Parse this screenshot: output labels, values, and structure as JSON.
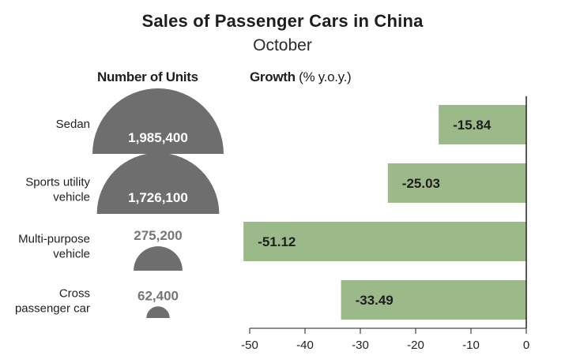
{
  "title": "Sales of Passenger Cars in China",
  "subtitle": "October",
  "units_header": "Number of Units",
  "growth_header_bold": "Growth",
  "growth_header_light": "(% y.o.y.)",
  "colors": {
    "semicircle": "#6e6e6e",
    "bar": "#9cb98a",
    "axis": "#222222"
  },
  "chart_data": [
    {
      "type": "semicircle-area",
      "title": "Number of Units",
      "categories": [
        "Sedan",
        "Sports utility vehicle",
        "Multi-purpose vehicle",
        "Cross passenger car"
      ],
      "values": [
        1985400,
        1726100,
        275200,
        62400
      ],
      "value_labels": [
        "1,985,400",
        "1,726,100",
        "275,200",
        "62,400"
      ]
    },
    {
      "type": "bar",
      "orientation": "horizontal",
      "title": "Growth (% y.o.y.)",
      "categories": [
        "Sedan",
        "Sports utility vehicle",
        "Multi-purpose vehicle",
        "Cross passenger car"
      ],
      "values": [
        -15.84,
        -25.03,
        -51.12,
        -33.49
      ],
      "value_labels": [
        "-15.84",
        "-25.03",
        "-51.12",
        "-33.49"
      ],
      "xlim": [
        -50,
        0
      ],
      "xticks": [
        -50,
        -40,
        -30,
        -20,
        -10,
        0
      ],
      "tick_labels": [
        "-50",
        "-40",
        "-30",
        "-20",
        "-10",
        "0"
      ],
      "grid": false
    }
  ],
  "category_labels": [
    [
      "Sedan"
    ],
    [
      "Sports utility",
      "vehicle"
    ],
    [
      "Multi-purpose",
      "vehicle"
    ],
    [
      "Cross",
      "passenger car"
    ]
  ]
}
